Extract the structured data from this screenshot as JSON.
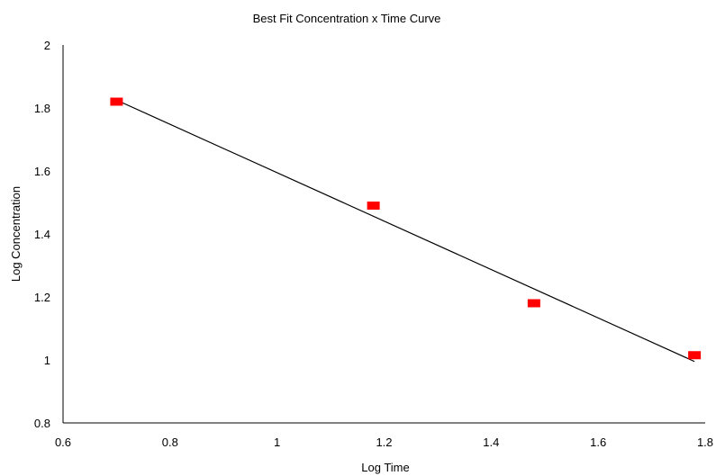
{
  "chart_data": {
    "type": "scatter",
    "title": "Best Fit Concentration x Time Curve",
    "xlabel": "Log Time",
    "ylabel": "Log Concentration",
    "xlim": [
      0.6,
      1.8
    ],
    "ylim": [
      0.8,
      2.0
    ],
    "xticks": [
      "0.6",
      "0.8",
      "1",
      "1.2",
      "1.4",
      "1.6",
      "1.8"
    ],
    "yticks": [
      "0.8",
      "1",
      "1.2",
      "1.4",
      "1.6",
      "1.8",
      "2"
    ],
    "grid": false,
    "legend": "none",
    "series": [
      {
        "type": "scatter",
        "marker": "square",
        "color": "#ff0000",
        "x": [
          0.7,
          1.18,
          1.48,
          1.78
        ],
        "y": [
          1.82,
          1.49,
          1.18,
          1.015
        ]
      },
      {
        "type": "line",
        "color": "#000000",
        "x": [
          0.7,
          1.78
        ],
        "y": [
          1.825,
          0.995
        ]
      }
    ]
  }
}
